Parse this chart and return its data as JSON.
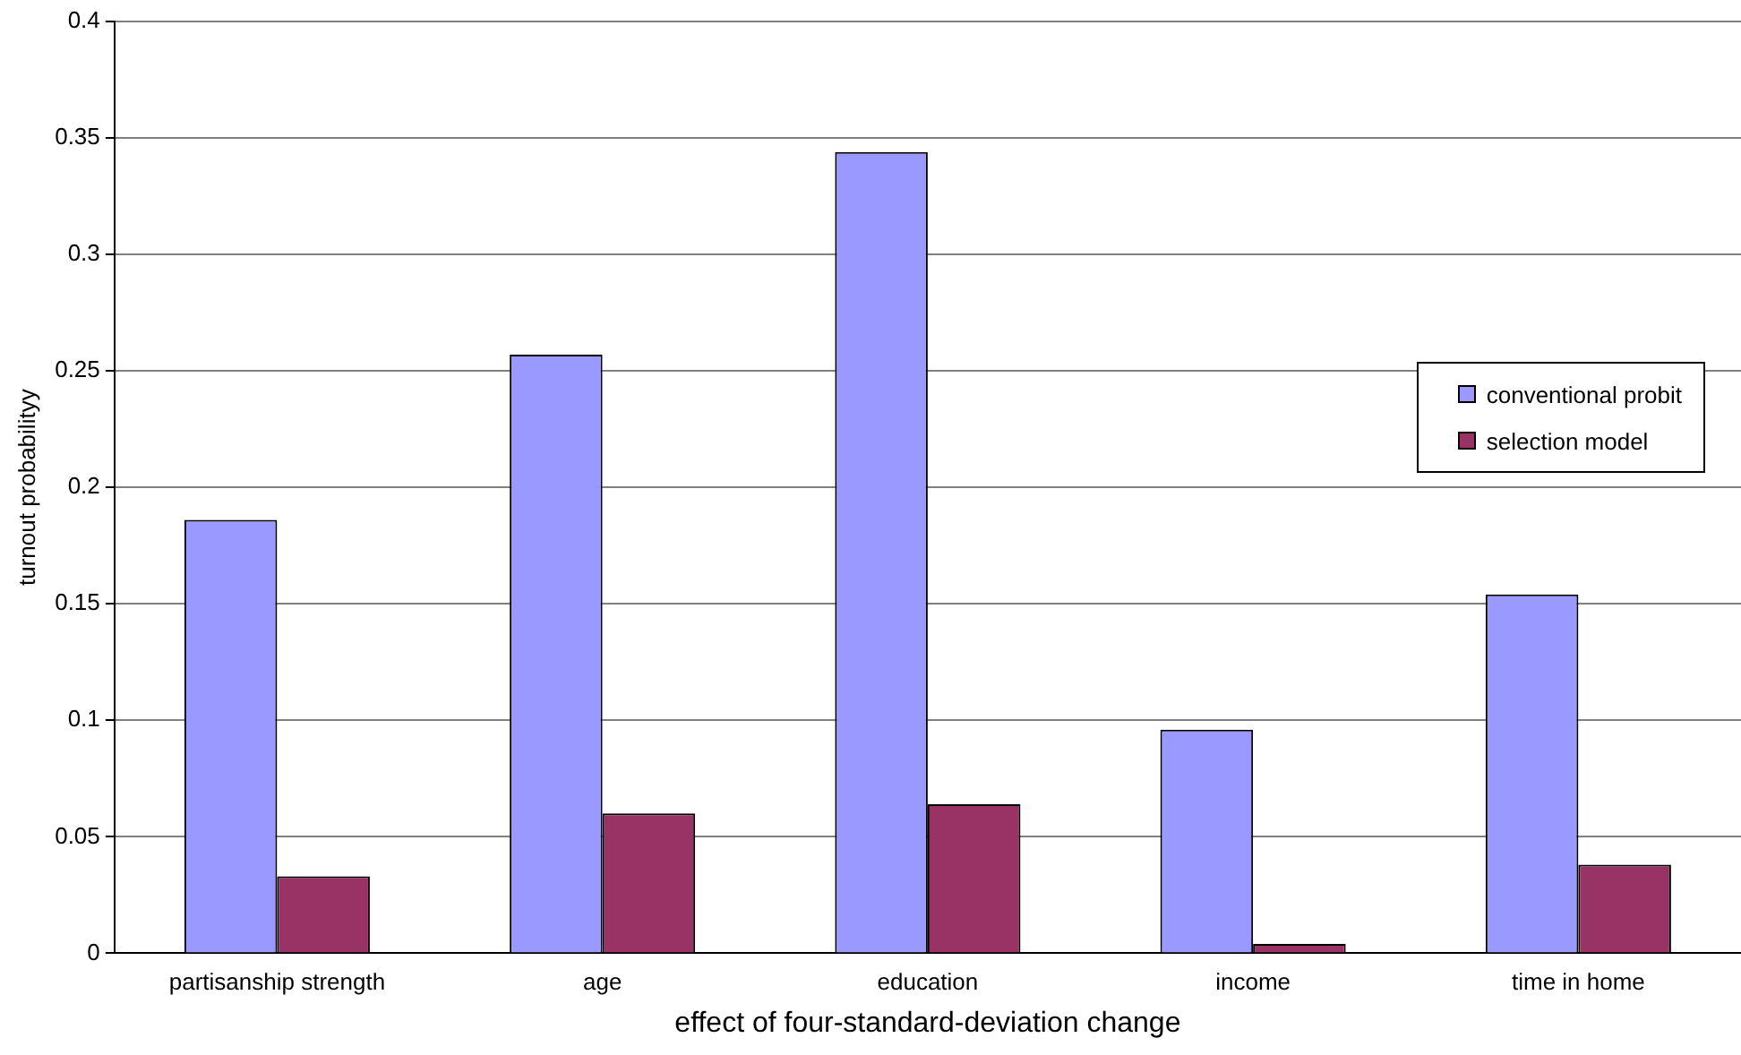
{
  "chart_data": {
    "type": "bar",
    "xlabel": "effect of four-standard-deviation change",
    "ylabel": "turnout probabilityy",
    "categories": [
      "partisanship strength",
      "age",
      "education",
      "income",
      "time in home"
    ],
    "series": [
      {
        "name": "conventional probit",
        "color": "#9999ff",
        "values": [
          0.186,
          0.257,
          0.344,
          0.096,
          0.154
        ]
      },
      {
        "name": "selection model",
        "color": "#993366",
        "values": [
          0.033,
          0.06,
          0.064,
          0.004,
          0.038
        ]
      }
    ],
    "ylim": [
      0,
      0.4
    ],
    "yticks": [
      0,
      0.05,
      0.1,
      0.15,
      0.2,
      0.25,
      0.3,
      0.35,
      0.4
    ],
    "grid": "y",
    "legend": "right"
  }
}
